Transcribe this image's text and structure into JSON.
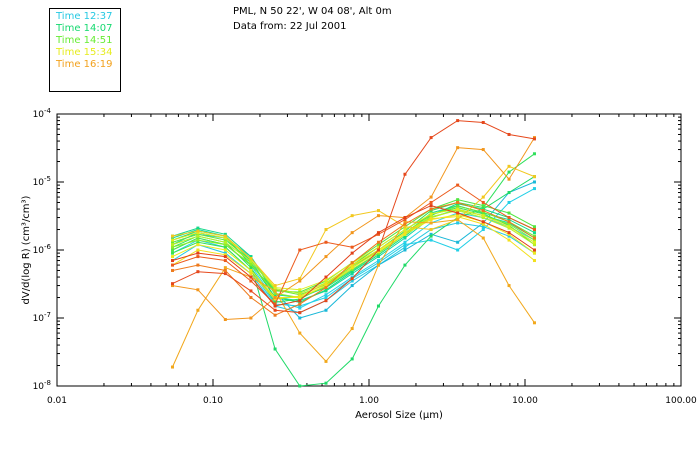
{
  "header": {
    "location": "PML, N 50 22', W 04 08', Alt 0m",
    "date": "Data from: 22 Jul 2001"
  },
  "legend": [
    {
      "label": "Time 12:37",
      "color": "#26c9e3"
    },
    {
      "label": "Time 14:07",
      "color": "#16d970"
    },
    {
      "label": "Time 14:51",
      "color": "#66ec33"
    },
    {
      "label": "Time 15:34",
      "color": "#e6ec1f"
    },
    {
      "label": "Time 16:19",
      "color": "#f2a11d"
    }
  ],
  "chart_data": {
    "type": "line",
    "title": "",
    "xlabel": "Aerosol Size (μm)",
    "ylabel": "dV/d(log R) (cm³/cm³)",
    "xscale": "log",
    "yscale": "log",
    "xlim": [
      0.01,
      100
    ],
    "ylim": [
      1e-08,
      0.0001
    ],
    "x_ticks": [
      {
        "value": 0.01,
        "label": "0.01"
      },
      {
        "value": 0.1,
        "label": "0.10"
      },
      {
        "value": 1,
        "label": "1.00"
      },
      {
        "value": 10,
        "label": "10.00"
      },
      {
        "value": 100,
        "label": "100.00"
      }
    ],
    "y_ticks": [
      {
        "value": 0.0001,
        "base": "10",
        "exp": "-4"
      },
      {
        "value": 1e-05,
        "base": "10",
        "exp": "-5"
      },
      {
        "value": 1e-06,
        "base": "10",
        "exp": "-6"
      },
      {
        "value": 1e-07,
        "base": "10",
        "exp": "-7"
      },
      {
        "value": 1e-08,
        "base": "10",
        "exp": "-8"
      }
    ],
    "x": [
      0.055,
      0.08,
      0.12,
      0.175,
      0.25,
      0.36,
      0.53,
      0.78,
      1.15,
      1.7,
      2.5,
      3.7,
      5.4,
      7.9,
      11.5
    ],
    "series": [
      {
        "name": "s1",
        "color": "#26c9e3",
        "values": [
          7e-07,
          1.2e-06,
          9e-07,
          4.5e-07,
          1.5e-07,
          1.2e-07,
          1.8e-07,
          3.5e-07,
          6e-07,
          1.1e-06,
          2e-06,
          2.5e-06,
          2.2e-06,
          1.6e-06,
          9e-07
        ]
      },
      {
        "name": "s2",
        "color": "#2ad1e8",
        "values": [
          1e-06,
          1.5e-06,
          1.2e-06,
          6e-07,
          1.8e-07,
          1.4e-07,
          2.2e-07,
          4e-07,
          7e-07,
          1.3e-06,
          2.5e-06,
          3.5e-06,
          3e-06,
          2.2e-06,
          1.4e-06
        ]
      },
      {
        "name": "s3",
        "color": "#1ab8d8",
        "values": [
          1.3e-06,
          1.7e-06,
          1.5e-06,
          8e-07,
          2.4e-07,
          1e-07,
          1.3e-07,
          3e-07,
          6e-07,
          1e-06,
          1.7e-06,
          1.3e-06,
          2.5e-06,
          7e-06,
          1e-05
        ]
      },
      {
        "name": "s4",
        "color": "#22cfe6",
        "values": [
          9e-07,
          1.4e-06,
          1.1e-06,
          5e-07,
          1.6e-07,
          1.5e-07,
          2e-07,
          3.8e-07,
          6.5e-07,
          1.2e-06,
          1.4e-06,
          1e-06,
          2e-06,
          5e-06,
          8e-06
        ]
      },
      {
        "name": "s5",
        "color": "#12d6a0",
        "values": [
          1.5e-06,
          2e-06,
          1.6e-06,
          7e-07,
          2e-07,
          1.8e-07,
          2.5e-07,
          4.5e-07,
          8e-07,
          1.5e-06,
          3e-06,
          4e-06,
          3.2e-06,
          2.5e-06,
          1.5e-06
        ]
      },
      {
        "name": "s6",
        "color": "#14d98a",
        "values": [
          1.6e-06,
          2.1e-06,
          1.7e-06,
          8e-07,
          2.2e-07,
          2e-07,
          2.8e-07,
          5e-07,
          9e-07,
          1.7e-06,
          3.5e-06,
          4.5e-06,
          3.5e-06,
          2.8e-06,
          1.8e-06
        ]
      },
      {
        "name": "s7",
        "color": "#18dc78",
        "values": [
          1.2e-06,
          1.8e-06,
          1.5e-06,
          6.5e-07,
          2e-07,
          1.7e-07,
          2.6e-07,
          4.8e-07,
          8.5e-07,
          1.6e-06,
          3.2e-06,
          4.8e-06,
          4e-06,
          3e-06,
          2e-06
        ]
      },
      {
        "name": "s8",
        "color": "#20da68",
        "values": [
          1.4e-06,
          1.9e-06,
          1.6e-06,
          6e-07,
          3.5e-08,
          1e-08,
          1.1e-08,
          2.5e-08,
          1.5e-07,
          6e-07,
          1.6e-06,
          3e-06,
          4e-06,
          7e-06,
          1.2e-05
        ]
      },
      {
        "name": "s9",
        "color": "#2ee05a",
        "values": [
          1.1e-06,
          1.6e-06,
          1.3e-06,
          5.5e-07,
          1.7e-07,
          1.9e-07,
          3e-07,
          5.5e-07,
          1e-06,
          1.9e-06,
          3.8e-06,
          5e-06,
          4.2e-06,
          1.4e-05,
          2.6e-05
        ]
      },
      {
        "name": "s10",
        "color": "#3ae24e",
        "values": [
          9e-07,
          1.3e-06,
          1.1e-06,
          5e-07,
          1.9e-07,
          2.1e-07,
          3.2e-07,
          6e-07,
          1.1e-06,
          2e-06,
          3.3e-06,
          4.2e-06,
          3.4e-06,
          2.3e-06,
          1.2e-06
        ]
      },
      {
        "name": "s11",
        "color": "#52e640",
        "values": [
          1e-06,
          1.5e-06,
          1.2e-06,
          6e-07,
          2.5e-07,
          2.4e-07,
          3.5e-07,
          6.5e-07,
          1.2e-06,
          2.2e-06,
          4e-06,
          5.5e-06,
          4.5e-06,
          3.5e-06,
          2.2e-06
        ]
      },
      {
        "name": "s12",
        "color": "#6cea34",
        "values": [
          1.3e-06,
          1.7e-06,
          1.4e-06,
          7e-07,
          2.6e-07,
          2.2e-07,
          3.1e-07,
          5.8e-07,
          1e-06,
          1.8e-06,
          3.3e-06,
          4.4e-06,
          3.6e-06,
          2.6e-06,
          1.6e-06
        ]
      },
      {
        "name": "s13",
        "color": "#8cee2a",
        "values": [
          1.1e-06,
          1.4e-06,
          1.2e-06,
          6.2e-07,
          2.3e-07,
          2e-07,
          2.9e-07,
          5.2e-07,
          9e-07,
          1.7e-06,
          3e-06,
          3.9e-06,
          3.2e-06,
          2.4e-06,
          1.4e-06
        ]
      },
      {
        "name": "s14",
        "color": "#b8f024",
        "values": [
          1.2e-06,
          1.6e-06,
          1.3e-06,
          6.8e-07,
          2.7e-07,
          2.3e-07,
          3.3e-07,
          5.9e-07,
          1e-06,
          1.8e-06,
          3.1e-06,
          3.8e-06,
          3e-06,
          2.1e-06,
          1.2e-06
        ]
      },
      {
        "name": "s15",
        "color": "#dcee1e",
        "values": [
          1.4e-06,
          1.8e-06,
          1.5e-06,
          7.5e-07,
          2.8e-07,
          2.6e-07,
          3.6e-07,
          6.4e-07,
          1.1e-06,
          2e-06,
          3.4e-06,
          4e-06,
          3.2e-06,
          2.2e-06,
          1.3e-06
        ]
      },
      {
        "name": "s16",
        "color": "#eeea1c",
        "values": [
          8e-07,
          1.2e-06,
          1e-06,
          5e-07,
          2e-07,
          2e-07,
          3e-07,
          5.5e-07,
          9.5e-07,
          1.7e-06,
          2.8e-06,
          3.3e-06,
          2.6e-06,
          1.7e-06,
          9e-07
        ]
      },
      {
        "name": "s17",
        "color": "#f2e01c",
        "values": [
          6e-07,
          1e-06,
          8.5e-07,
          4.5e-07,
          1.9e-07,
          2.1e-07,
          3.2e-07,
          6e-07,
          1e-06,
          1.8e-06,
          2.9e-06,
          3.1e-06,
          2.4e-06,
          1.4e-06,
          7e-07
        ]
      },
      {
        "name": "s18",
        "color": "#f2c81e",
        "values": [
          1.6e-06,
          1.9e-06,
          1.6e-06,
          7.5e-07,
          3e-07,
          3.8e-07,
          2e-06,
          3.2e-06,
          3.8e-06,
          2.2e-06,
          2e-06,
          2.8e-06,
          6e-06,
          1.7e-05,
          1.2e-05
        ]
      },
      {
        "name": "s19",
        "color": "#f2a81c",
        "values": [
          1.9e-08,
          1.3e-07,
          5.5e-07,
          4e-07,
          2.5e-07,
          6e-08,
          2.3e-08,
          7e-08,
          6e-07,
          2.6e-06,
          2.5e-06,
          2.8e-06,
          1.5e-06,
          3e-07,
          8.5e-08
        ]
      },
      {
        "name": "s20",
        "color": "#f2961c",
        "values": [
          3e-07,
          2.6e-07,
          9.5e-08,
          1e-07,
          2e-07,
          3.5e-07,
          8e-07,
          1.8e-06,
          3.2e-06,
          3e-06,
          6e-06,
          3.2e-05,
          3e-05,
          1.1e-05,
          4.5e-05
        ]
      },
      {
        "name": "s21",
        "color": "#ee7a1c",
        "values": [
          5e-07,
          6e-07,
          5e-07,
          2e-07,
          1.1e-07,
          1.6e-07,
          2.8e-07,
          6.5e-07,
          1.3e-06,
          2.4e-06,
          4e-06,
          5e-06,
          3.8e-06,
          2.6e-06,
          1.5e-06
        ]
      },
      {
        "name": "s22",
        "color": "#ec5a1c",
        "values": [
          6e-07,
          8e-07,
          7e-07,
          3.5e-07,
          1.6e-07,
          1e-06,
          1.3e-06,
          1.1e-06,
          1.7e-06,
          2.8e-06,
          5e-06,
          9e-06,
          5e-06,
          3e-06,
          2e-06
        ]
      },
      {
        "name": "s23",
        "color": "#e6481c",
        "values": [
          3.2e-07,
          4.8e-07,
          4.5e-07,
          2.5e-07,
          1.3e-07,
          1.2e-07,
          1.8e-07,
          3.8e-07,
          1e-06,
          1.3e-05,
          4.5e-05,
          8e-05,
          7.5e-05,
          5e-05,
          4.3e-05
        ]
      },
      {
        "name": "s24",
        "color": "#e24018",
        "values": [
          7e-07,
          9e-07,
          8e-07,
          4e-07,
          1.5e-07,
          1.8e-07,
          4e-07,
          9e-07,
          1.8e-06,
          3e-06,
          4.5e-06,
          3.5e-06,
          2.6e-06,
          1.8e-06,
          1e-06
        ]
      }
    ]
  }
}
